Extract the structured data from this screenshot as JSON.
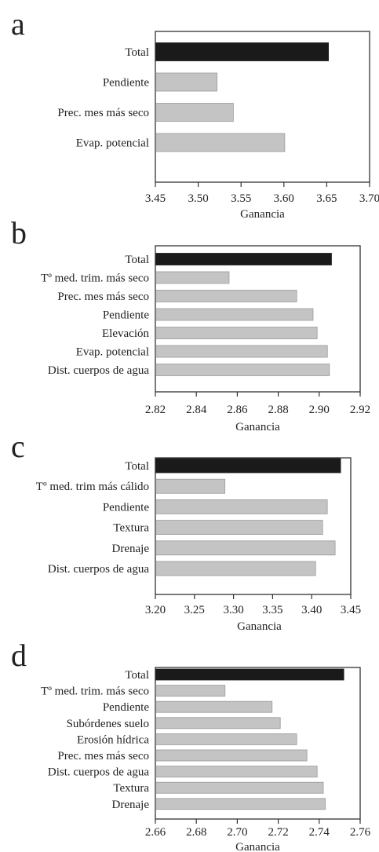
{
  "chart_data": [
    {
      "type": "bar",
      "panel_label": "a",
      "categories": [
        "Total",
        "Pendiente",
        "Prec. mes más seco",
        "Evap. potencial"
      ],
      "values": [
        3.652,
        3.522,
        3.541,
        3.601
      ],
      "highlight_index": 0,
      "xlabel": "Ganancia",
      "xlim": [
        3.45,
        3.7
      ],
      "xticks": [
        "3.45",
        "3.50",
        "3.55",
        "3.60",
        "3.65",
        "3.70"
      ]
    },
    {
      "type": "bar",
      "panel_label": "b",
      "categories": [
        "Total",
        "Tº med. trim. más seco",
        "Prec. mes más seco",
        "Pendiente",
        "Elevación",
        "Evap. potencial",
        "Dist. cuerpos de agua"
      ],
      "values": [
        2.906,
        2.856,
        2.889,
        2.897,
        2.899,
        2.904,
        2.905
      ],
      "highlight_index": 0,
      "xlabel": "Ganancia",
      "xlim": [
        2.82,
        2.92
      ],
      "xticks": [
        "2.82",
        "2.84",
        "2.86",
        "2.88",
        "2.90",
        "2.92"
      ]
    },
    {
      "type": "bar",
      "panel_label": "c",
      "categories": [
        "Total",
        "Tº med. trim más cálido",
        "Pendiente",
        "Textura",
        "Drenaje",
        "Dist. cuerpos de agua"
      ],
      "values": [
        3.437,
        3.289,
        3.42,
        3.414,
        3.43,
        3.405
      ],
      "highlight_index": 0,
      "xlabel": "Ganancia",
      "xlim": [
        3.2,
        3.45
      ],
      "xticks": [
        "3.20",
        "3.25",
        "3.30",
        "3.35",
        "3.40",
        "3.45"
      ]
    },
    {
      "type": "bar",
      "panel_label": "d",
      "categories": [
        "Total",
        "Tº med. trim. más seco",
        "Pendiente",
        "Subórdenes suelo",
        "Erosión hídrica",
        "Prec. mes más seco",
        "Dist. cuerpos de agua",
        "Textura",
        "Drenaje"
      ],
      "values": [
        2.752,
        2.694,
        2.717,
        2.721,
        2.729,
        2.734,
        2.739,
        2.742,
        2.743
      ],
      "highlight_index": 0,
      "xlabel": "Ganancia",
      "xlim": [
        2.66,
        2.76
      ],
      "xticks": [
        "2.66",
        "2.68",
        "2.70",
        "2.72",
        "2.74",
        "2.76"
      ]
    }
  ],
  "colors": {
    "highlight": "#1a1a1a",
    "bar": "#c4c4c4",
    "bar_stroke": "#9a9a9a",
    "frame": "#333333"
  }
}
